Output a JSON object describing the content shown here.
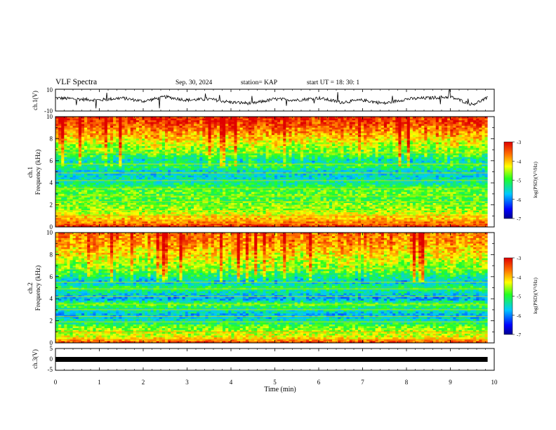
{
  "header": {
    "title": "VLF Spectra",
    "date": "Sep. 30, 2024",
    "station": "station= KAP",
    "start": "start  UT =   18: 30: 1"
  },
  "chart_data": [
    {
      "type": "line",
      "panel": "ch1-waveform",
      "ylabel": "ch.1(V)",
      "yticks": [
        "10",
        "-10"
      ],
      "ylim": [
        -10,
        10
      ],
      "xlim": [
        0,
        10
      ],
      "data_end_min": 9.85,
      "description_of_values": "noisy trace centred near 0 V with excursions",
      "x": [
        0,
        0.5,
        1,
        1.5,
        2,
        2.5,
        3,
        3.5,
        4,
        4.5,
        5,
        5.5,
        6,
        6.5,
        7,
        7.5,
        8,
        8.5,
        9,
        9.5,
        9.85
      ],
      "y": [
        2,
        1,
        0,
        2,
        -1,
        3,
        0,
        1,
        -2,
        -3,
        1,
        0,
        2,
        -2,
        0,
        -3,
        1,
        2,
        3,
        -4,
        2
      ]
    },
    {
      "type": "heatmap",
      "panel": "ch1-spectrogram",
      "ylabel": "ch.1\nFrequency (kHz)",
      "yticks": [
        "0",
        "2",
        "4",
        "6",
        "8",
        "10"
      ],
      "ylim": [
        0,
        10
      ],
      "xlim": [
        0,
        10
      ],
      "data_end_min": 9.85,
      "colorbar": {
        "label": "log(PSD)(V²/Hz)",
        "ticks": [
          "-3",
          "-4",
          "-5",
          "-6",
          "-7"
        ],
        "range": [
          -7,
          -3
        ]
      },
      "freq_profile_khz": [
        0,
        0.5,
        1,
        1.5,
        2,
        2.5,
        3,
        3.5,
        4,
        4.5,
        5,
        5.5,
        6,
        6.5,
        7,
        7.5,
        8,
        8.5,
        9,
        9.5,
        10
      ],
      "log_psd_profile": [
        -3.2,
        -3.8,
        -4.2,
        -4.6,
        -4.7,
        -4.9,
        -4.8,
        -4.9,
        -5.3,
        -5.5,
        -5.6,
        -5.0,
        -5.4,
        -4.9,
        -4.6,
        -4.4,
        -4.1,
        -3.8,
        -3.6,
        -3.3,
        -3.2
      ],
      "tone_lines_khz": [
        0.3,
        0.6,
        1.0,
        1.5,
        1.9,
        2.3,
        2.8,
        3.5,
        4.2,
        4.9,
        5.7,
        6.7
      ]
    },
    {
      "type": "heatmap",
      "panel": "ch2-spectrogram",
      "ylabel": "ch.2\nFrequency (kHz)",
      "yticks": [
        "0",
        "2",
        "4",
        "6",
        "8",
        "10"
      ],
      "ylim": [
        0,
        10
      ],
      "xlim": [
        0,
        10
      ],
      "data_end_min": 9.85,
      "colorbar": {
        "label": "log(PSD)(V²/Hz)",
        "ticks": [
          "-3",
          "-4",
          "-5",
          "-6",
          "-7"
        ],
        "range": [
          -7,
          -3
        ]
      },
      "freq_profile_khz": [
        0,
        0.5,
        1,
        1.5,
        2,
        2.5,
        3,
        3.5,
        4,
        4.5,
        5,
        5.5,
        6,
        6.5,
        7,
        7.5,
        8,
        8.5,
        9,
        9.5,
        10
      ],
      "log_psd_profile": [
        -3.3,
        -4.3,
        -4.5,
        -4.8,
        -5.4,
        -5.8,
        -5.3,
        -4.8,
        -5.9,
        -5.5,
        -5.0,
        -5.7,
        -5.2,
        -4.8,
        -4.6,
        -4.4,
        -4.2,
        -4.0,
        -3.8,
        -3.7,
        -3.6
      ],
      "tone_lines_khz": [
        0.3,
        1.0,
        1.9,
        2.4,
        3.0,
        3.5,
        4.2,
        4.9,
        5.5,
        6.7
      ]
    },
    {
      "type": "line",
      "panel": "ch3-waveform",
      "ylabel": "ch.3(V)",
      "yticks": [
        "5",
        "0",
        "-5"
      ],
      "ylim": [
        -5,
        5
      ],
      "xlim": [
        0,
        10
      ],
      "data_end_min": 9.85,
      "x": [
        0,
        9.85
      ],
      "y": [
        0,
        0
      ]
    }
  ],
  "xaxis": {
    "label": "Time (min)",
    "ticks": [
      "0",
      "1",
      "2",
      "3",
      "4",
      "5",
      "6",
      "7",
      "8",
      "9",
      "10"
    ]
  }
}
